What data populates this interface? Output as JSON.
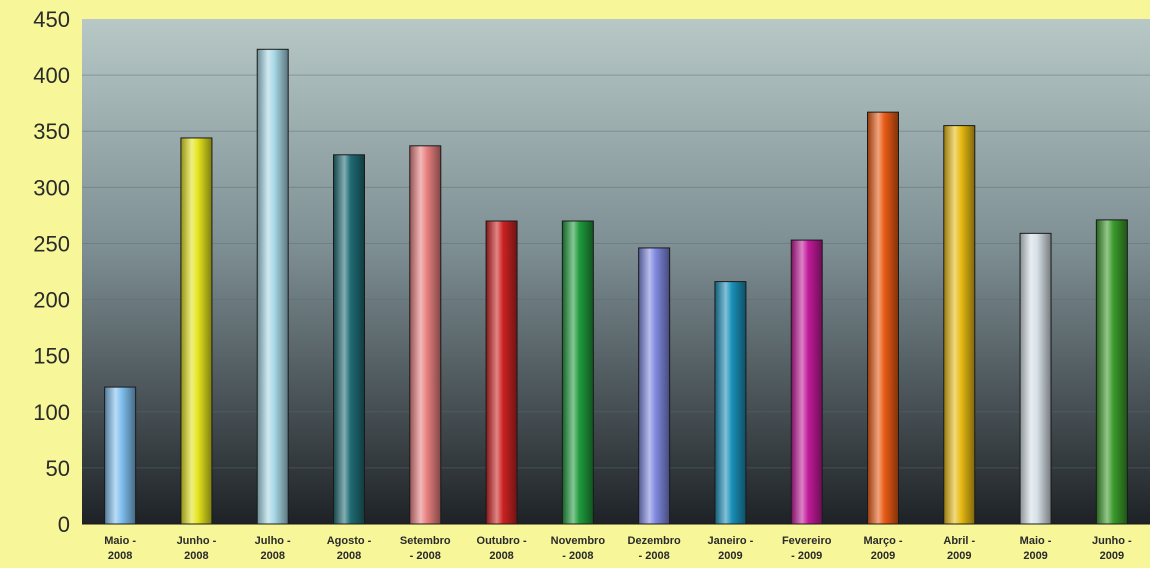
{
  "chart_data": {
    "type": "bar",
    "title": "",
    "xlabel": "",
    "ylabel": "",
    "ylim": [
      0,
      450
    ],
    "yticks": [
      0,
      50,
      100,
      150,
      200,
      250,
      300,
      350,
      400,
      450
    ],
    "grid": true,
    "legend": "none",
    "categories": [
      [
        "Maio -",
        "2008"
      ],
      [
        "Junho -",
        "2008"
      ],
      [
        "Julho -",
        "2008"
      ],
      [
        "Agosto -",
        "2008"
      ],
      [
        "Setembro",
        "- 2008"
      ],
      [
        "Outubro -",
        "2008"
      ],
      [
        "Novembro",
        "- 2008"
      ],
      [
        "Dezembro",
        "- 2008"
      ],
      [
        "Janeiro -",
        "2009"
      ],
      [
        "Fevereiro",
        "- 2009"
      ],
      [
        "Março -",
        "2009"
      ],
      [
        "Abril -",
        "2009"
      ],
      [
        "Maio -",
        "2009"
      ],
      [
        "Junho -",
        "2009"
      ]
    ],
    "values": [
      122,
      344,
      423,
      329,
      337,
      270,
      270,
      246,
      216,
      253,
      367,
      355,
      259,
      271
    ],
    "colors": [
      "#7fbfee",
      "#e4e41e",
      "#a8d8e6",
      "#1f6b74",
      "#e88080",
      "#cc2222",
      "#1f9a3c",
      "#7f88e0",
      "#1a8fb8",
      "#c21a9a",
      "#e85a14",
      "#e8bb14",
      "#d6e0e6",
      "#3a9a2a"
    ]
  }
}
